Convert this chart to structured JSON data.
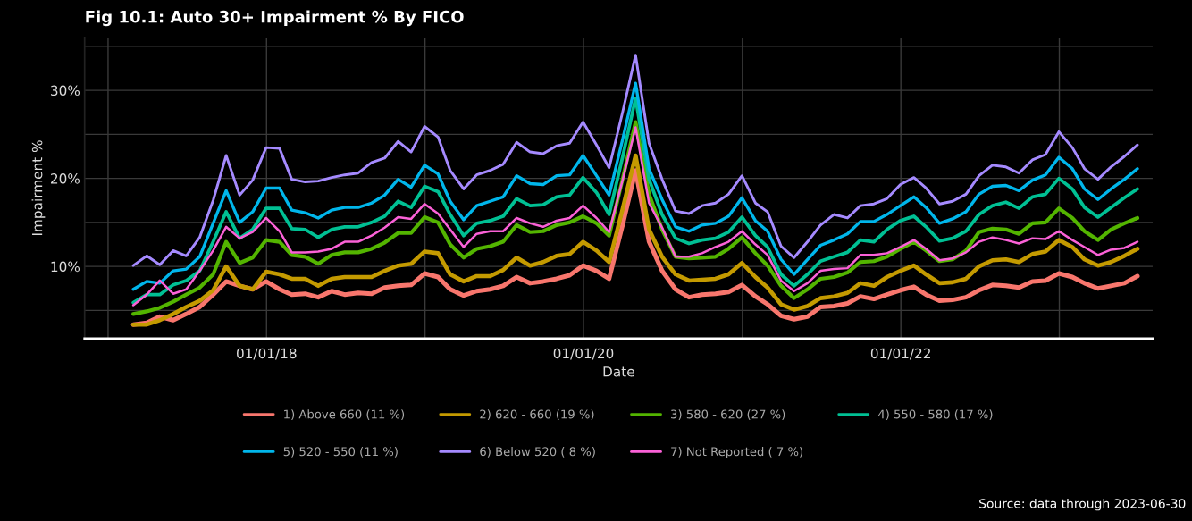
{
  "chart_data": {
    "type": "line",
    "title": "Fig 10.1: Auto 30+ Impairment % By FICO",
    "xlabel": "Date",
    "ylabel": "Impairment %",
    "annotations": [
      "Source: data through 2023-06-30"
    ],
    "x": [
      "2017-02-28",
      "2017-03-31",
      "2017-04-30",
      "2017-05-31",
      "2017-06-30",
      "2017-07-31",
      "2017-08-31",
      "2017-09-30",
      "2017-10-31",
      "2017-11-30",
      "2017-12-31",
      "2018-01-31",
      "2018-02-28",
      "2018-03-31",
      "2018-04-30",
      "2018-05-31",
      "2018-06-30",
      "2018-07-31",
      "2018-08-31",
      "2018-09-30",
      "2018-10-31",
      "2018-11-30",
      "2018-12-31",
      "2019-01-31",
      "2019-02-28",
      "2019-03-31",
      "2019-04-30",
      "2019-05-31",
      "2019-06-30",
      "2019-07-31",
      "2019-08-31",
      "2019-09-30",
      "2019-10-31",
      "2019-11-30",
      "2019-12-31",
      "2020-01-31",
      "2020-02-29",
      "2020-03-31",
      "2020-04-30",
      "2020-05-31",
      "2020-06-30",
      "2020-07-31",
      "2020-08-31",
      "2020-09-30",
      "2020-10-31",
      "2020-11-30",
      "2020-12-31",
      "2021-01-31",
      "2021-02-28",
      "2021-03-31",
      "2021-04-30",
      "2021-05-31",
      "2021-06-30",
      "2021-07-31",
      "2021-08-31",
      "2021-09-30",
      "2021-10-31",
      "2021-11-30",
      "2021-12-31",
      "2022-01-31",
      "2022-02-28",
      "2022-03-31",
      "2022-04-30",
      "2022-05-31",
      "2022-06-30",
      "2022-07-31",
      "2022-08-31",
      "2022-09-30",
      "2022-10-31",
      "2022-11-30",
      "2022-12-31",
      "2023-01-31",
      "2023-02-28",
      "2023-03-31",
      "2023-04-30",
      "2023-05-31",
      "2023-06-30"
    ],
    "series": [
      {
        "name": "1) Above 660 (11 %)",
        "color": "#f8766d",
        "values": [
          3.4,
          3.6,
          4.3,
          3.9,
          4.6,
          5.4,
          6.8,
          8.3,
          7.8,
          7.4,
          8.3,
          7.4,
          6.8,
          6.9,
          6.5,
          7.2,
          6.8,
          7.0,
          6.9,
          7.6,
          7.8,
          7.9,
          9.2,
          8.8,
          7.4,
          6.7,
          7.2,
          7.4,
          7.8,
          8.8,
          8.1,
          8.3,
          8.6,
          9.0,
          10.1,
          9.5,
          8.6,
          14.7,
          20.9,
          12.8,
          9.5,
          7.4,
          6.5,
          6.8,
          6.9,
          7.1,
          7.9,
          6.6,
          5.7,
          4.4,
          4.0,
          4.3,
          5.4,
          5.5,
          5.8,
          6.6,
          6.3,
          6.8,
          7.3,
          7.7,
          6.8,
          6.1,
          6.2,
          6.5,
          7.3,
          7.9,
          7.8,
          7.6,
          8.3,
          8.4,
          9.2,
          8.8,
          8.1,
          7.5,
          7.8,
          8.1,
          8.9
        ]
      },
      {
        "name": "2) 620 - 660 (19 %)",
        "color": "#c49a00",
        "values": [
          3.4,
          3.4,
          3.9,
          4.6,
          5.4,
          6.1,
          7.3,
          10.0,
          7.8,
          7.4,
          9.4,
          9.1,
          8.6,
          8.6,
          7.8,
          8.6,
          8.8,
          8.8,
          8.8,
          9.5,
          10.1,
          10.3,
          11.7,
          11.5,
          9.1,
          8.3,
          8.9,
          8.9,
          9.6,
          11.0,
          10.1,
          10.5,
          11.2,
          11.4,
          12.8,
          11.8,
          10.5,
          16.5,
          22.6,
          14.2,
          11.1,
          9.1,
          8.4,
          8.5,
          8.6,
          9.1,
          10.4,
          8.8,
          7.6,
          5.7,
          5.1,
          5.5,
          6.4,
          6.6,
          7.0,
          8.1,
          7.8,
          8.8,
          9.5,
          10.1,
          9.1,
          8.1,
          8.2,
          8.6,
          10.0,
          10.7,
          10.8,
          10.5,
          11.4,
          11.7,
          13.0,
          12.2,
          10.8,
          10.1,
          10.5,
          11.2,
          12.0
        ]
      },
      {
        "name": "3) 580 - 620 (27 %)",
        "color": "#53b400",
        "values": [
          4.6,
          4.9,
          5.3,
          6.0,
          6.8,
          7.6,
          9.1,
          12.8,
          10.4,
          11.0,
          13.0,
          12.8,
          11.3,
          11.1,
          10.3,
          11.3,
          11.6,
          11.6,
          12.0,
          12.7,
          13.8,
          13.8,
          15.6,
          15.0,
          12.5,
          11.0,
          12.0,
          12.3,
          12.8,
          14.7,
          13.9,
          14.0,
          14.7,
          15.0,
          15.7,
          14.9,
          13.5,
          19.9,
          26.4,
          18.2,
          14.2,
          11.1,
          10.9,
          11.0,
          11.1,
          12.0,
          13.3,
          11.5,
          10.1,
          7.8,
          6.4,
          7.4,
          8.6,
          8.8,
          9.3,
          10.5,
          10.6,
          11.1,
          12.0,
          12.8,
          11.8,
          10.6,
          10.8,
          11.8,
          13.9,
          14.3,
          14.2,
          13.7,
          14.9,
          15.0,
          16.6,
          15.5,
          14.0,
          13.0,
          14.2,
          14.9,
          15.5
        ]
      },
      {
        "name": "4) 550 - 580 (17 %)",
        "color": "#00c094",
        "values": [
          5.9,
          6.8,
          6.8,
          7.9,
          8.4,
          9.5,
          12.8,
          16.2,
          13.2,
          14.2,
          16.6,
          16.6,
          14.3,
          14.2,
          13.3,
          14.2,
          14.5,
          14.5,
          15.0,
          15.7,
          17.4,
          16.7,
          19.1,
          18.5,
          15.9,
          13.5,
          14.9,
          15.2,
          15.7,
          17.7,
          16.9,
          17.0,
          17.9,
          18.1,
          20.1,
          18.4,
          15.9,
          22.4,
          29.1,
          19.9,
          15.9,
          13.2,
          12.6,
          13.0,
          13.2,
          13.9,
          15.6,
          13.5,
          12.2,
          9.1,
          7.8,
          9.1,
          10.6,
          11.1,
          11.6,
          13.0,
          12.8,
          14.2,
          15.2,
          15.7,
          14.5,
          12.9,
          13.2,
          14.0,
          15.9,
          16.9,
          17.3,
          16.6,
          17.9,
          18.2,
          20.0,
          18.8,
          16.7,
          15.6,
          16.7,
          17.8,
          18.8
        ]
      },
      {
        "name": "5) 520 - 550 (11 %)",
        "color": "#00b6eb",
        "values": [
          7.4,
          8.3,
          8.1,
          9.5,
          9.7,
          11.1,
          14.9,
          18.6,
          15.0,
          16.2,
          18.9,
          18.9,
          16.4,
          16.1,
          15.5,
          16.4,
          16.7,
          16.7,
          17.2,
          18.1,
          19.9,
          19.0,
          21.5,
          20.5,
          17.4,
          15.3,
          16.9,
          17.4,
          17.9,
          20.3,
          19.4,
          19.3,
          20.3,
          20.4,
          22.6,
          20.3,
          18.1,
          24.4,
          30.8,
          21.1,
          17.6,
          14.5,
          14.0,
          14.7,
          14.9,
          15.7,
          17.8,
          15.2,
          14.0,
          10.8,
          9.1,
          10.8,
          12.4,
          13.0,
          13.7,
          15.1,
          15.1,
          15.9,
          16.9,
          17.9,
          16.7,
          14.9,
          15.4,
          16.2,
          18.2,
          19.1,
          19.2,
          18.6,
          19.8,
          20.4,
          22.4,
          21.1,
          18.8,
          17.6,
          18.8,
          19.9,
          21.1
        ]
      },
      {
        "name": "6) Below 520 ( 8 %)",
        "color": "#a58aff",
        "values": [
          10.1,
          11.2,
          10.2,
          11.8,
          11.2,
          13.3,
          17.5,
          22.6,
          18.1,
          19.8,
          23.5,
          23.4,
          19.9,
          19.6,
          19.7,
          20.1,
          20.4,
          20.6,
          21.8,
          22.3,
          24.2,
          23.0,
          25.9,
          24.7,
          20.9,
          18.8,
          20.4,
          20.9,
          21.6,
          24.1,
          23.0,
          22.8,
          23.7,
          24.0,
          26.4,
          23.8,
          21.2,
          27.5,
          34.0,
          24.0,
          19.9,
          16.3,
          16.0,
          16.9,
          17.2,
          18.2,
          20.3,
          17.2,
          16.2,
          12.3,
          11.0,
          12.8,
          14.7,
          15.9,
          15.5,
          16.9,
          17.1,
          17.7,
          19.3,
          20.1,
          18.9,
          17.1,
          17.4,
          18.2,
          20.3,
          21.5,
          21.3,
          20.6,
          22.1,
          22.7,
          25.3,
          23.5,
          21.1,
          19.9,
          21.3,
          22.5,
          23.8
        ]
      },
      {
        "name": "7) Not Reported ( 7 %)",
        "color": "#fb61d7",
        "values": [
          5.6,
          6.8,
          8.4,
          6.9,
          7.4,
          9.5,
          11.8,
          14.5,
          13.2,
          13.9,
          15.5,
          14.0,
          11.6,
          11.6,
          11.7,
          12.0,
          12.8,
          12.8,
          13.5,
          14.4,
          15.6,
          15.4,
          17.1,
          16.0,
          14.2,
          12.2,
          13.7,
          14.0,
          14.0,
          15.5,
          14.9,
          14.5,
          15.2,
          15.5,
          16.9,
          15.5,
          13.9,
          19.8,
          25.8,
          17.2,
          14.4,
          11.1,
          11.1,
          11.5,
          12.2,
          12.8,
          14.0,
          12.5,
          11.3,
          8.4,
          7.2,
          8.1,
          9.5,
          9.7,
          9.8,
          11.3,
          11.3,
          11.5,
          12.2,
          13.0,
          12.0,
          10.7,
          10.9,
          11.6,
          12.8,
          13.3,
          13.0,
          12.6,
          13.2,
          13.1,
          14.0,
          13.0,
          12.2,
          11.3,
          11.9,
          12.1,
          12.8
        ]
      }
    ],
    "xlim": [
      "2016-11-08",
      "2023-08-04"
    ],
    "xticks": [
      {
        "value": "2017-01-01",
        "label": null
      },
      {
        "value": "2018-01-01",
        "label": "01/01/18"
      },
      {
        "value": "2019-01-01",
        "label": null
      },
      {
        "value": "2020-01-01",
        "label": "01/01/20"
      },
      {
        "value": "2021-01-01",
        "label": null
      },
      {
        "value": "2022-01-01",
        "label": "01/01/22"
      },
      {
        "value": "2023-01-01",
        "label": null
      }
    ],
    "ylim": [
      1.8,
      36
    ],
    "yticks": [
      {
        "value": 5,
        "label": null
      },
      {
        "value": 10,
        "label": "10%"
      },
      {
        "value": 15,
        "label": null
      },
      {
        "value": 20,
        "label": "20%"
      },
      {
        "value": 25,
        "label": null
      },
      {
        "value": 30,
        "label": "30%"
      },
      {
        "value": 35,
        "label": null
      }
    ],
    "grid": true,
    "legend": "bottom",
    "line_style": "solid"
  }
}
